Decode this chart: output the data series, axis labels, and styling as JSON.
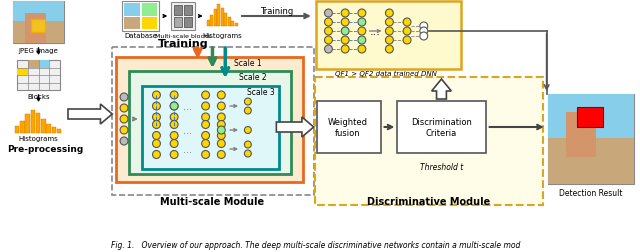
{
  "title": "Fig. 1.   Overview of our approach. The deep multi-scale discriminative networks contain a multi-scale mod",
  "section_labels": [
    "Pre-processing",
    "Multi-scale Module",
    "Discriminative Module"
  ],
  "bg_color": "#ffffff",
  "training_label": "Training",
  "weighted_fusion_label": "Weighted\nfusion",
  "discrimination_label": "Discrimination\nCriteria",
  "threshold_label": "Threshold t",
  "qf_label": "QF1 > QF2 data trained DNN",
  "detection_label": "Detection Result",
  "scale_labels": [
    "Scale 1",
    "Scale 2",
    "Scale 3"
  ],
  "node_yellow": "#FFD700",
  "node_green": "#90EE90",
  "node_gray": "#BBBBBB",
  "node_white": "#ffffff",
  "orange_scale": "#E86820",
  "green_scale": "#2E8B57",
  "cyan_scale": "#008B8B",
  "dnn_box_fc": "#FFFACD",
  "dnn_box_ec": "#DAA520",
  "disc_box_fc": "#FFFDE7",
  "disc_box_ec": "#DAA520",
  "orange_scale_fc": "#FDEBD0",
  "green_scale_fc": "#E8F5E9",
  "cyan_scale_fc": "#E0F7FA"
}
